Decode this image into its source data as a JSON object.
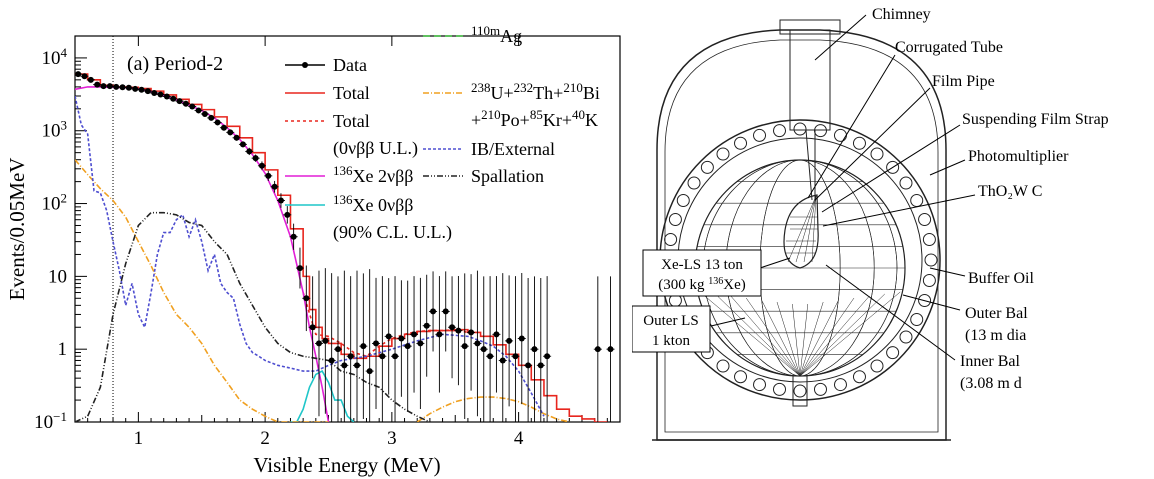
{
  "chart_data": {
    "type": "line",
    "panel_label": "(a) Period-2",
    "xlabel": "Visible Energy (MeV)",
    "ylabel": "Events/0.05MeV",
    "xlim": [
      0.5,
      4.8
    ],
    "ylim": [
      0.1,
      20000
    ],
    "y_scale": "log",
    "x_ticks": [
      1,
      2,
      3,
      4
    ],
    "y_ticks": [
      {
        "v": 0.1,
        "t": "10",
        "s": "−1"
      },
      {
        "v": 1,
        "t": "1",
        "s": ""
      },
      {
        "v": 10,
        "t": "10",
        "s": ""
      },
      {
        "v": 100,
        "t": "10",
        "s": "2"
      },
      {
        "v": 1000,
        "t": "10",
        "s": "3"
      },
      {
        "v": 10000,
        "t": "10",
        "s": "4"
      }
    ],
    "threshold_line_x": 0.8,
    "legend": [
      {
        "key": "data",
        "sup": "",
        "text": "Data"
      },
      {
        "key": "total",
        "sup": "",
        "text": "Total"
      },
      {
        "key": "total_ul",
        "sup": "",
        "text": "Total",
        "line2": "(0νββ U.L.)"
      },
      {
        "key": "xe2v",
        "sup": "136",
        "text": "Xe 2νββ"
      },
      {
        "key": "xe0v",
        "sup": "136",
        "text": "Xe 0νββ",
        "line2": "(90% C.L. U.L.)"
      },
      {
        "key": "ag",
        "sup": "110m",
        "text": "Ag"
      },
      {
        "key": "uth",
        "text_html": "<tspan baseline-shift='super' font-size='13'>238</tspan>U+<tspan baseline-shift='super' font-size='13'>232</tspan>Th+<tspan baseline-shift='super' font-size='13'>210</tspan>Bi",
        "line2_html": "+<tspan baseline-shift='super' font-size='13'>210</tspan>Po+<tspan baseline-shift='super' font-size='13'>85</tspan>Kr+<tspan baseline-shift='super' font-size='13'>40</tspan>K"
      },
      {
        "key": "ib",
        "sup": "",
        "text": "IB/External"
      },
      {
        "key": "spall",
        "sup": "",
        "text": "Spallation"
      }
    ],
    "series": [
      {
        "name": "Data",
        "key": "data",
        "color": "#000000",
        "x": [
          0.525,
          0.575,
          0.625,
          0.675,
          0.725,
          0.775,
          0.825,
          0.875,
          0.925,
          0.975,
          1.025,
          1.075,
          1.125,
          1.175,
          1.225,
          1.275,
          1.325,
          1.375,
          1.425,
          1.475,
          1.525,
          1.575,
          1.625,
          1.675,
          1.725,
          1.775,
          1.825,
          1.875,
          1.925,
          1.975,
          2.025,
          2.075,
          2.125,
          2.175,
          2.225,
          2.275,
          2.325,
          2.375,
          2.425,
          2.475,
          2.525,
          2.575,
          2.625,
          2.675,
          2.725,
          2.775,
          2.825,
          2.875,
          2.925,
          2.975,
          3.025,
          3.075,
          3.125,
          3.175,
          3.225,
          3.275,
          3.325,
          3.375,
          3.425,
          3.475,
          3.525,
          3.575,
          3.625,
          3.675,
          3.725,
          3.775,
          3.825,
          3.875,
          3.925,
          3.975,
          4.025,
          4.075,
          4.125,
          4.175,
          4.225,
          4.625,
          4.725
        ],
        "y": [
          6000,
          5600,
          5000,
          4300,
          4100,
          4100,
          4000,
          3950,
          3900,
          3750,
          3650,
          3500,
          3300,
          3150,
          2950,
          2750,
          2550,
          2350,
          2150,
          1900,
          1700,
          1500,
          1300,
          1100,
          950,
          800,
          650,
          520,
          420,
          330,
          240,
          170,
          110,
          70,
          35,
          13,
          5,
          2,
          1.2,
          1.3,
          0.7,
          1,
          0.6,
          0.8,
          0.6,
          1.1,
          0.5,
          1.2,
          0.8,
          1.5,
          0.8,
          1.4,
          1.1,
          1.6,
          1.2,
          2.1,
          3.3,
          1.6,
          3.3,
          2.0,
          1.8,
          1.1,
          1.7,
          1.2,
          1.0,
          0.8,
          1.6,
          0.7,
          1.3,
          0.8,
          1.4,
          0.6,
          1.0,
          0.6,
          0.8,
          1.0,
          1.0
        ],
        "err": [
          0.03,
          0.03,
          0.03,
          0.03,
          0.03,
          0.03,
          0.03,
          0.03,
          0.03,
          0.03,
          0.03,
          0.03,
          0.03,
          0.03,
          0.03,
          0.03,
          0.03,
          0.03,
          0.03,
          0.03,
          0.03,
          0.03,
          0.03,
          0.03,
          0.04,
          0.04,
          0.04,
          0.05,
          0.05,
          0.06,
          0.07,
          0.08,
          0.1,
          0.12,
          0.18,
          0.28,
          0.45,
          0.7,
          1,
          1,
          1.2,
          1,
          1.3,
          1.1,
          1.3,
          1,
          1.4,
          0.9,
          1.1,
          0.8,
          1.1,
          0.8,
          0.9,
          0.8,
          0.9,
          0.7,
          0.55,
          0.8,
          0.55,
          0.7,
          0.75,
          1,
          0.8,
          1,
          1,
          1.1,
          0.8,
          1.2,
          0.9,
          1.1,
          0.9,
          1.2,
          1,
          1.2,
          1.1,
          1,
          1
        ]
      },
      {
        "name": "Total",
        "key": "total",
        "color": "#e8261e",
        "style": "step",
        "x": [
          0.5,
          0.6,
          0.7,
          0.8,
          0.9,
          1.0,
          1.1,
          1.2,
          1.3,
          1.4,
          1.5,
          1.6,
          1.7,
          1.8,
          1.9,
          2.0,
          2.1,
          2.2,
          2.3,
          2.35,
          2.4,
          2.45,
          2.5,
          2.6,
          2.7,
          2.8,
          2.9,
          3.0,
          3.1,
          3.2,
          3.3,
          3.4,
          3.5,
          3.6,
          3.7,
          3.8,
          3.9,
          4.0,
          4.1,
          4.2,
          4.3,
          4.4,
          4.5,
          4.6
        ],
        "y": [
          6000,
          5000,
          4200,
          4000,
          3950,
          3800,
          3500,
          3100,
          2700,
          2300,
          1950,
          1550,
          1150,
          800,
          500,
          290,
          130,
          45,
          10,
          3.5,
          2.0,
          1.4,
          1.2,
          0.85,
          0.75,
          0.8,
          1.1,
          1.4,
          1.6,
          1.75,
          1.8,
          1.8,
          1.85,
          1.7,
          1.5,
          1.15,
          0.85,
          0.6,
          0.38,
          0.23,
          0.15,
          0.12,
          0.11,
          0.1
        ]
      },
      {
        "name": "Total (0νββ U.L.)",
        "key": "total_ul",
        "color": "#e8261e",
        "dash": "3,3",
        "x": [
          2.3,
          2.4,
          2.5,
          2.6,
          2.7,
          2.8,
          2.9,
          3.0,
          3.1,
          3.2,
          3.3,
          3.4,
          3.5,
          3.6
        ],
        "y": [
          6,
          1.6,
          1.5,
          1.2,
          0.9,
          0.8,
          1.1,
          1.4,
          1.6,
          1.75,
          1.8,
          1.8,
          1.85,
          1.7
        ]
      },
      {
        "name": "136Xe 2νββ",
        "key": "xe2v",
        "color": "#e21fd6",
        "x": [
          0.5,
          0.6,
          0.7,
          0.8,
          0.9,
          1.0,
          1.1,
          1.2,
          1.3,
          1.4,
          1.5,
          1.6,
          1.7,
          1.8,
          1.9,
          2.0,
          2.1,
          2.2,
          2.3,
          2.35,
          2.4,
          2.45,
          2.5
        ],
        "y": [
          3700,
          4000,
          4000,
          3950,
          3900,
          3750,
          3450,
          3050,
          2650,
          2250,
          1900,
          1500,
          1100,
          760,
          470,
          260,
          110,
          35,
          6,
          2,
          0.8,
          0.3,
          0.1
        ]
      },
      {
        "name": "136Xe 0νββ",
        "key": "xe0v",
        "color": "#1fc6c9",
        "x": [
          2.2,
          2.25,
          2.3,
          2.35,
          2.4,
          2.45,
          2.5,
          2.55,
          2.6,
          2.65,
          2.7
        ],
        "y": [
          0.1,
          0.1,
          0.15,
          0.3,
          0.45,
          0.5,
          0.35,
          0.2,
          0.2,
          0.12,
          0.1
        ]
      },
      {
        "name": "110mAg",
        "key": "ag",
        "color": "#3dbd3d",
        "dash": "7,4",
        "x": [],
        "y": []
      },
      {
        "name": "238U+232Th+210Bi +210Po+85Kr+40K",
        "key": "uth",
        "color": "#f0a020",
        "dash": "6,2,1,2",
        "x": [
          0.5,
          0.6,
          0.7,
          0.8,
          0.9,
          1.0,
          1.1,
          1.2,
          1.3,
          1.4,
          1.5,
          1.6,
          1.7,
          1.8,
          1.9,
          2.0,
          2.1,
          2.2,
          2.3,
          2.4,
          2.5
        ],
        "y": [
          400,
          250,
          160,
          110,
          65,
          30,
          14,
          6,
          3,
          2,
          1.2,
          0.6,
          0.35,
          0.2,
          0.15,
          0.12,
          0.1,
          0.1,
          0.1,
          0.1,
          0.1
        ],
        "x2": [
          3.2,
          3.3,
          3.4,
          3.5,
          3.6,
          3.7,
          3.8,
          3.9,
          4.0,
          4.1,
          4.2,
          4.3,
          4.4
        ],
        "y2": [
          0.1,
          0.13,
          0.16,
          0.19,
          0.21,
          0.22,
          0.22,
          0.21,
          0.19,
          0.16,
          0.13,
          0.11,
          0.1
        ]
      },
      {
        "name": "IB/External",
        "key": "ib",
        "color": "#4e4ed0",
        "dash": "3,2",
        "x": [
          0.5,
          0.55,
          0.6,
          0.65,
          0.7,
          0.75,
          0.8,
          0.85,
          0.9,
          0.95,
          1.0,
          1.05,
          1.1,
          1.15,
          1.2,
          1.25,
          1.3,
          1.35,
          1.4,
          1.45,
          1.5,
          1.55,
          1.6,
          1.65,
          1.7,
          1.75,
          1.8,
          1.85,
          1.9,
          1.95,
          2.0,
          2.1,
          2.2,
          2.3,
          2.4,
          2.5,
          2.6,
          2.8,
          3.0,
          3.2,
          3.4,
          3.6,
          3.7,
          3.8,
          3.9,
          4.0,
          4.1,
          4.2
        ],
        "y": [
          3000,
          1200,
          900,
          150,
          140,
          80,
          30,
          12,
          4,
          8,
          3,
          2,
          6,
          20,
          40,
          40,
          60,
          70,
          35,
          60,
          30,
          12,
          20,
          8,
          6,
          5,
          2.2,
          1.2,
          0.9,
          0.8,
          0.7,
          0.6,
          0.55,
          0.5,
          0.5,
          0.6,
          0.7,
          0.8,
          1.0,
          1.3,
          1.6,
          1.5,
          1.3,
          1.1,
          0.8,
          0.5,
          0.25,
          0.12
        ]
      },
      {
        "name": "Spallation",
        "key": "spall",
        "color": "#222222",
        "dash": "6,2,1,2,1,2",
        "x": [
          0.5,
          0.6,
          0.7,
          0.8,
          0.9,
          1.0,
          1.1,
          1.2,
          1.3,
          1.4,
          1.5,
          1.6,
          1.7,
          1.8,
          1.9,
          2.0,
          2.1,
          2.2,
          2.3,
          2.4,
          2.5,
          2.6,
          2.7,
          2.8,
          2.9,
          3.0,
          3.1,
          3.2,
          3.3
        ],
        "y": [
          0.1,
          0.12,
          0.3,
          3,
          15,
          50,
          75,
          75,
          70,
          55,
          50,
          30,
          20,
          8,
          4,
          2,
          1.2,
          0.9,
          0.8,
          0.75,
          0.7,
          0.5,
          0.45,
          0.35,
          0.3,
          0.2,
          0.15,
          0.12,
          0.1
        ]
      }
    ]
  },
  "detector": {
    "labels": {
      "chimney": "Chimney",
      "corrugated_tube": "Corrugated Tube",
      "film_pipe": "Film Pipe",
      "suspending_film_strap": "Suspending Film Strap",
      "photomultiplier": "Photomultiplier",
      "tho2w": "ThO₂W C",
      "xe_ls_line1": "Xe-LS 13 ton",
      "xe_ls_line2_pre": "(300 kg ",
      "xe_ls_line2_sup": "136",
      "xe_ls_line2_post": "Xe)",
      "outer_ls_line1": "Outer LS",
      "outer_ls_line2": "1 kton",
      "buffer_oil": "Buffer Oil",
      "outer_bal_line1": "Outer Bal",
      "outer_bal_line2": "(13 m dia",
      "inner_bal_line1": "Inner Bal",
      "inner_bal_line2": "(3.08 m d"
    }
  }
}
